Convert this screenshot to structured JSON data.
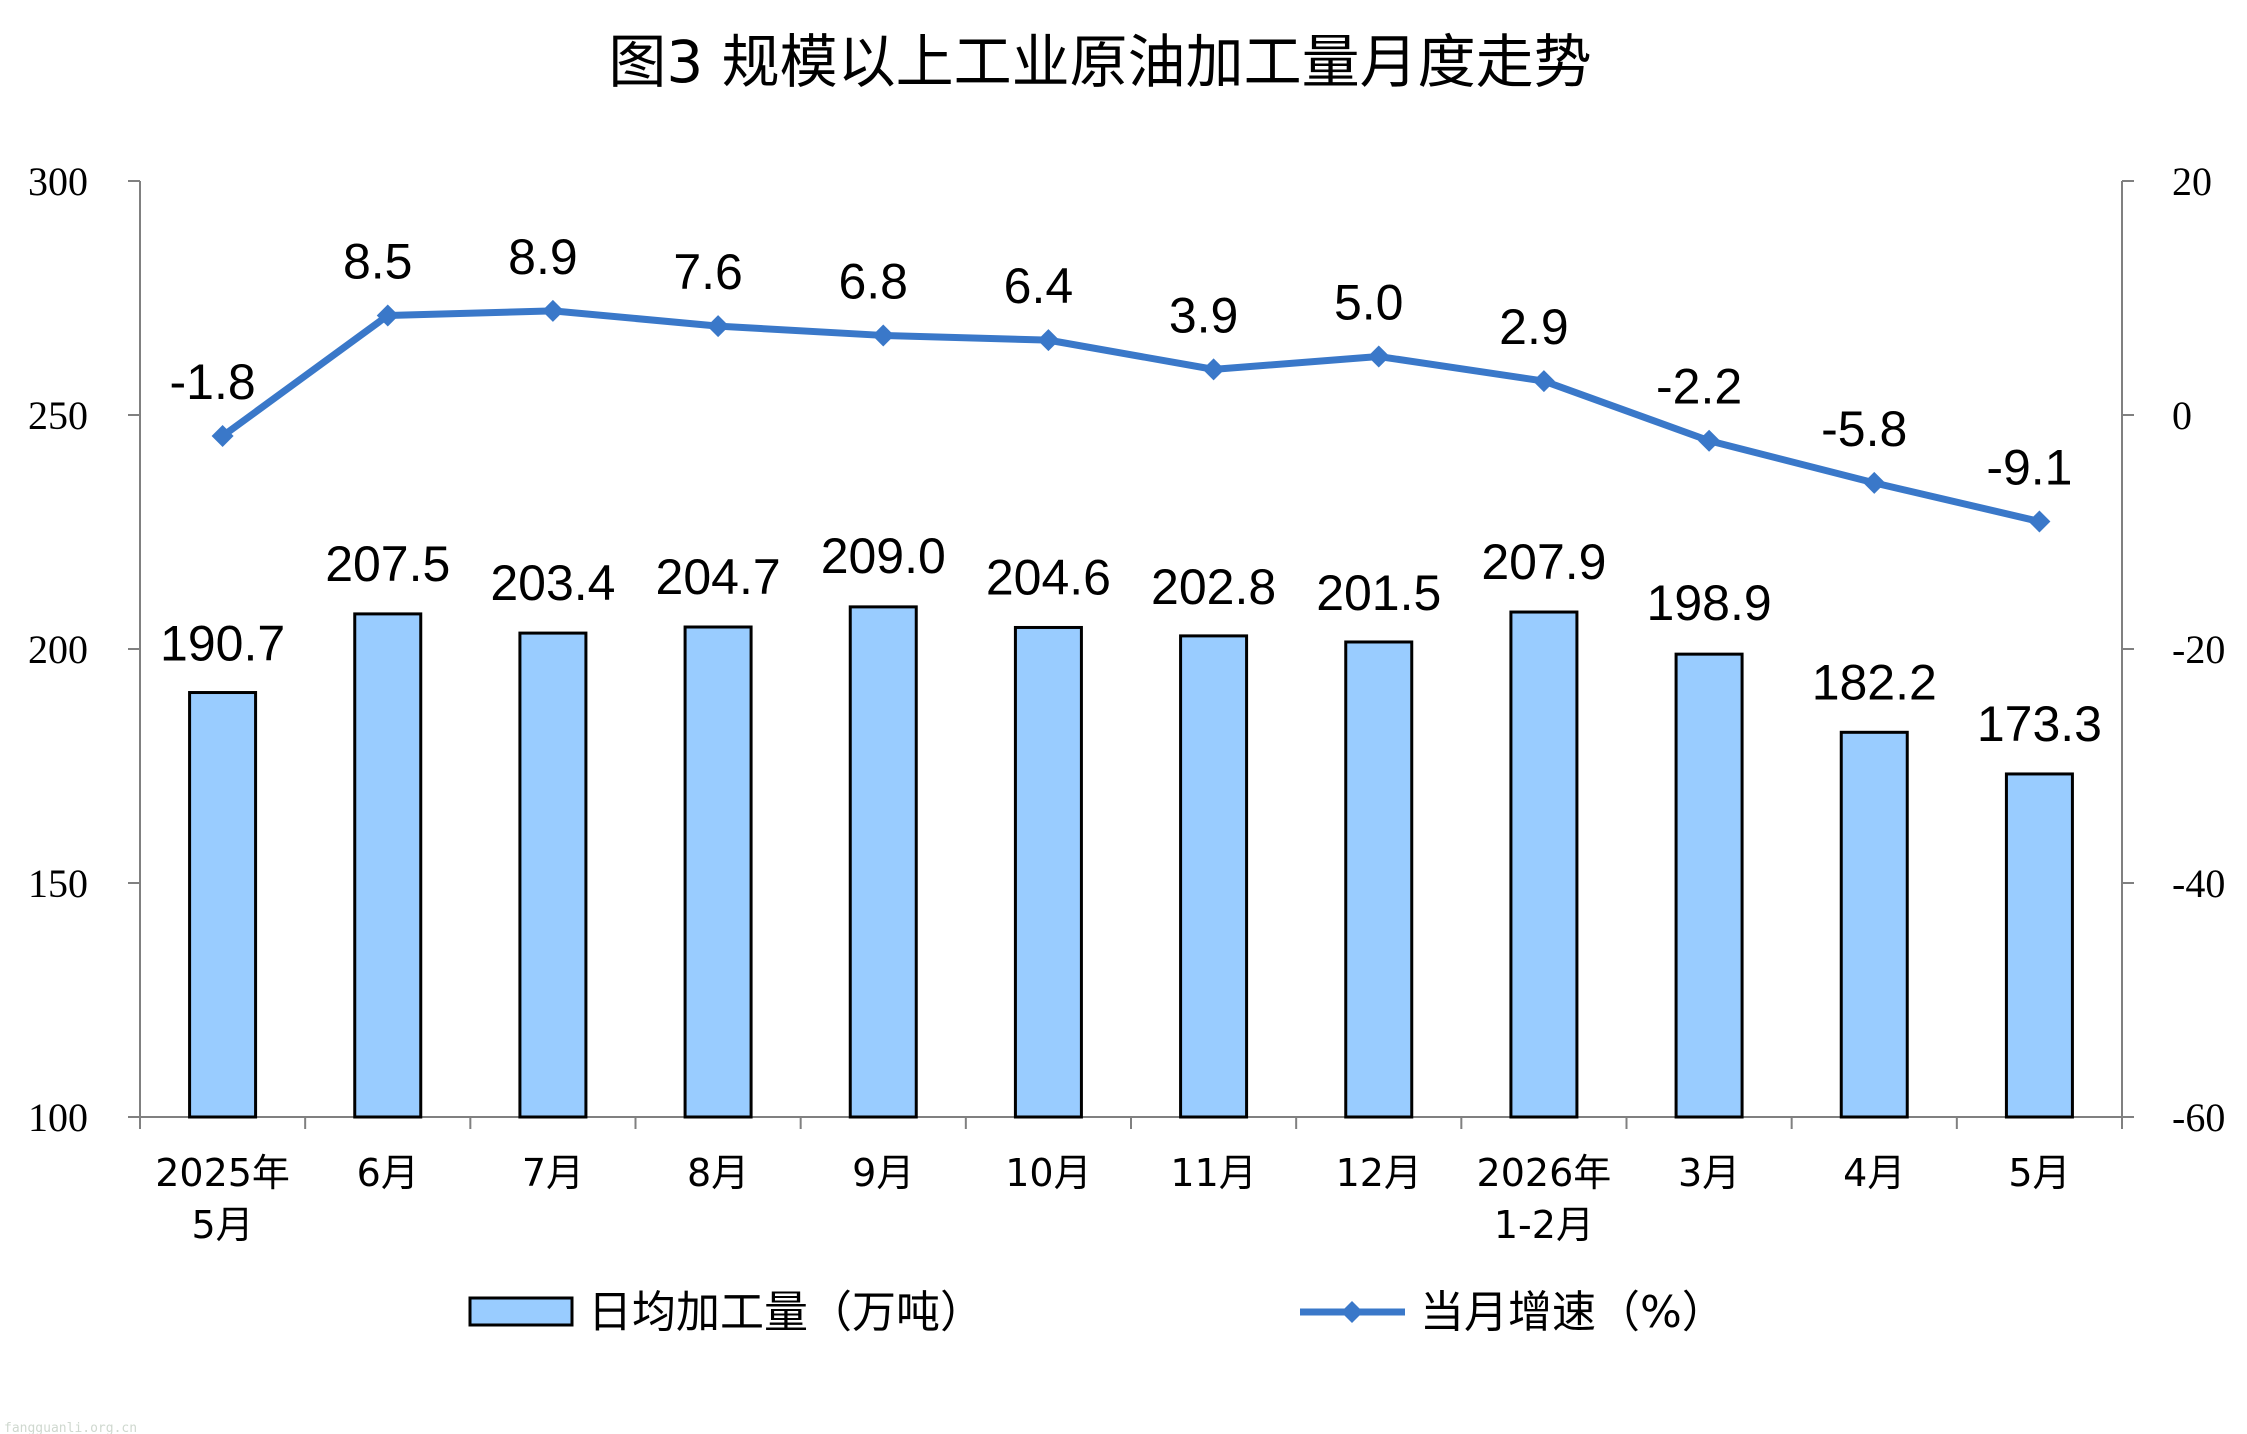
{
  "chart_data": {
    "type": "bar",
    "title": "图3  规模以上工业原油加工量月度走势",
    "categories": [
      [
        "2025年",
        "5月"
      ],
      [
        "6月"
      ],
      [
        "7月"
      ],
      [
        "8月"
      ],
      [
        "9月"
      ],
      [
        "10月"
      ],
      [
        "11月"
      ],
      [
        "12月"
      ],
      [
        "2026年",
        "1-2月"
      ],
      [
        "3月"
      ],
      [
        "4月"
      ],
      [
        "5月"
      ]
    ],
    "series": [
      {
        "name": "日均加工量（万吨）",
        "type": "bar",
        "axis": "left",
        "color": "#99ccff",
        "values": [
          190.7,
          207.5,
          203.4,
          204.7,
          209.0,
          204.6,
          202.8,
          201.5,
          207.9,
          198.9,
          182.2,
          173.3
        ],
        "labels": [
          "190.7",
          "207.5",
          "203.4",
          "204.7",
          "209.0",
          "204.6",
          "202.8",
          "201.5",
          "207.9",
          "198.9",
          "182.2",
          "173.3"
        ]
      },
      {
        "name": "当月增速（%）",
        "type": "line",
        "axis": "right",
        "color": "#3a78c9",
        "values": [
          -1.8,
          8.5,
          8.9,
          7.6,
          6.8,
          6.4,
          3.9,
          5.0,
          2.9,
          -2.2,
          -5.8,
          -9.1
        ],
        "labels": [
          "-1.8",
          "8.5",
          "8.9",
          "7.6",
          "6.8",
          "6.4",
          "3.9",
          "5.0",
          "2.9",
          "-2.2",
          "-5.8",
          "-9.1"
        ]
      }
    ],
    "y_left": {
      "ylim": [
        100,
        300
      ],
      "ticks": [
        "100",
        "150",
        "200",
        "250",
        "300"
      ]
    },
    "y_right": {
      "ylim": [
        -60,
        20
      ],
      "ticks": [
        "-60",
        "-40",
        "-20",
        "0",
        "20"
      ]
    },
    "grid": false,
    "legend": "bottom"
  },
  "watermark": "fangguanli.org.cn"
}
